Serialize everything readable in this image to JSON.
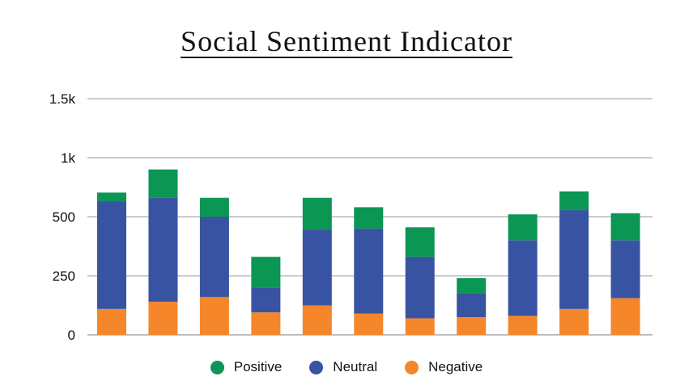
{
  "chart_data": {
    "type": "bar",
    "stacked": true,
    "title": "Social Sentiment Indicator",
    "xlabel": "",
    "ylabel": "",
    "ylim": [
      0,
      1500
    ],
    "yticks": [
      0,
      250,
      500,
      1000,
      1500
    ],
    "ytick_labels": [
      "0",
      "250",
      "500",
      "1k",
      "1.5k"
    ],
    "grid": true,
    "legend_position": "bottom",
    "series": [
      {
        "name": "Negative",
        "color": "#F5862A",
        "values": [
          110,
          140,
          160,
          95,
          125,
          90,
          70,
          75,
          80,
          110,
          155
        ]
      },
      {
        "name": "Neutral",
        "color": "#3953A3",
        "values": [
          520,
          520,
          340,
          105,
          320,
          360,
          260,
          100,
          320,
          450,
          245
        ]
      },
      {
        "name": "Positive",
        "color": "#0B9654",
        "values": [
          75,
          240,
          160,
          130,
          215,
          130,
          125,
          65,
          120,
          155,
          130
        ]
      }
    ],
    "legend_order": [
      "Positive",
      "Neutral",
      "Negative"
    ]
  }
}
